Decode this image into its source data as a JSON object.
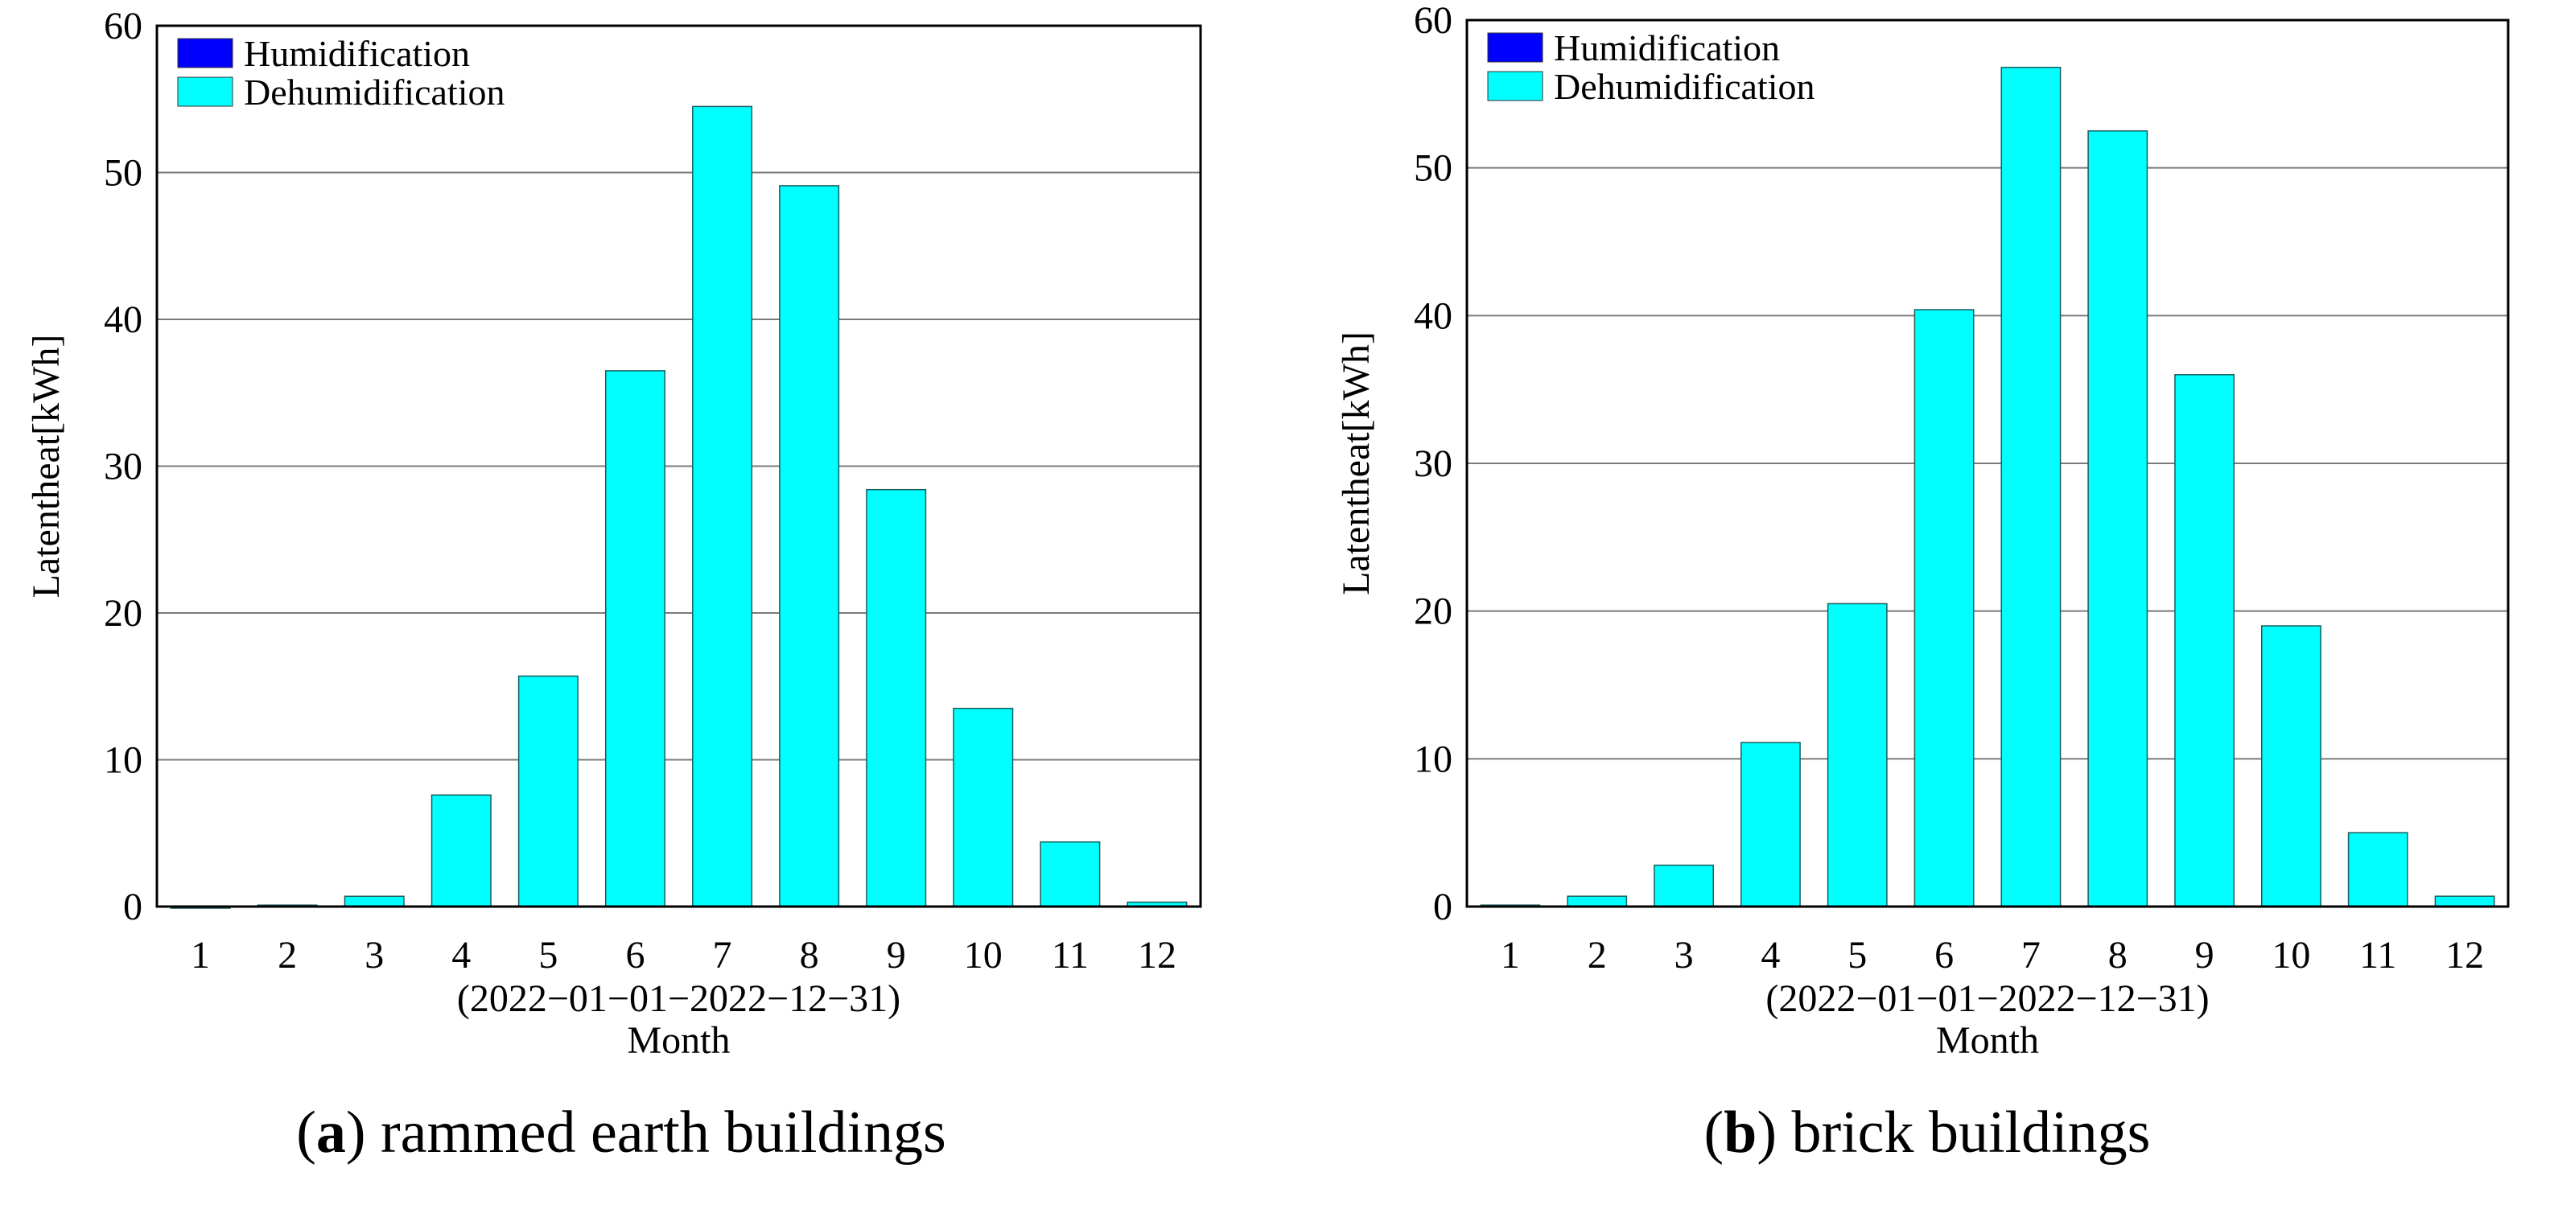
{
  "chart_data": [
    {
      "type": "bar",
      "categories": [
        "1",
        "2",
        "3",
        "4",
        "5",
        "6",
        "7",
        "8",
        "9",
        "10",
        "11",
        "12"
      ],
      "series": [
        {
          "name": "Humidification",
          "values": [
            0,
            0,
            0,
            0,
            0,
            0,
            0,
            0,
            0,
            0,
            0,
            0
          ]
        },
        {
          "name": "Dehumidification",
          "values": [
            0,
            0.1,
            0.7,
            7.6,
            15.7,
            36.5,
            54.5,
            49.1,
            28.4,
            13.5,
            4.4,
            0.3
          ]
        }
      ],
      "xlabel_line1": "(2022−01−01−2022−12−31)",
      "xlabel_line2": "Month",
      "ylabel": "Latentheat[kWh]",
      "ylim": [
        0,
        60
      ],
      "yticks": [
        "0",
        "10",
        "20",
        "30",
        "40",
        "50",
        "60"
      ],
      "grid": true,
      "legend": "top-left",
      "caption_letter": "a",
      "caption_text": ") rammed earth buildings",
      "caption_open": "(",
      "colors": {
        "Humidification": "#0000ff",
        "Dehumidification": "#00ffff"
      }
    },
    {
      "type": "bar",
      "categories": [
        "1",
        "2",
        "3",
        "4",
        "5",
        "6",
        "7",
        "8",
        "9",
        "10",
        "11",
        "12"
      ],
      "series": [
        {
          "name": "Humidification",
          "values": [
            0,
            0,
            0,
            0,
            0,
            0,
            0,
            0,
            0,
            0,
            0,
            0
          ]
        },
        {
          "name": "Dehumidification",
          "values": [
            0.1,
            0.7,
            2.8,
            11.1,
            20.5,
            40.4,
            56.8,
            52.5,
            36.0,
            19.0,
            5.0,
            0.7
          ]
        }
      ],
      "xlabel_line1": "(2022−01−01−2022−12−31)",
      "xlabel_line2": "Month",
      "ylabel": "Latentheat[kWh]",
      "ylim": [
        0,
        60
      ],
      "yticks": [
        "0",
        "10",
        "20",
        "30",
        "40",
        "50",
        "60"
      ],
      "grid": true,
      "legend": "top-left",
      "caption_letter": "b",
      "caption_text": ") brick buildings",
      "caption_open": "(",
      "colors": {
        "Humidification": "#0000ff",
        "Dehumidification": "#00ffff"
      }
    }
  ]
}
